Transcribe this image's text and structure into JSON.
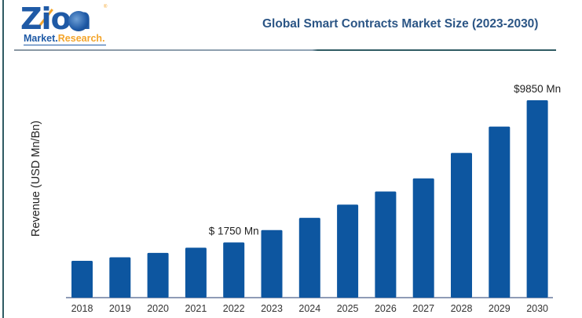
{
  "logo": {
    "brand": "Zion",
    "sub_left": "Market.",
    "sub_right": "Research.",
    "registered": "®"
  },
  "chart_data": {
    "type": "bar",
    "title": "Global Smart Contracts Market Size (2023-2030)",
    "xlabel": "",
    "ylabel": "Revenue (USD Mn/Bn)",
    "categories": [
      "2018",
      "2019",
      "2020",
      "2021",
      "2022",
      "2023",
      "2024",
      "2025",
      "2026",
      "2027",
      "2028",
      "2029",
      "2030"
    ],
    "values": [
      700,
      900,
      1150,
      1450,
      1750,
      2450,
      3150,
      3900,
      4650,
      5400,
      6850,
      8350,
      9850
    ],
    "data_labels": [
      {
        "category": "2022",
        "text": "$ 1750 Mn"
      },
      {
        "category": "2030",
        "text": "$9850 Mn"
      }
    ],
    "grid": false,
    "legend": "none",
    "bar_color": "#0d56a0",
    "axis_color": "#4a5f8a"
  }
}
